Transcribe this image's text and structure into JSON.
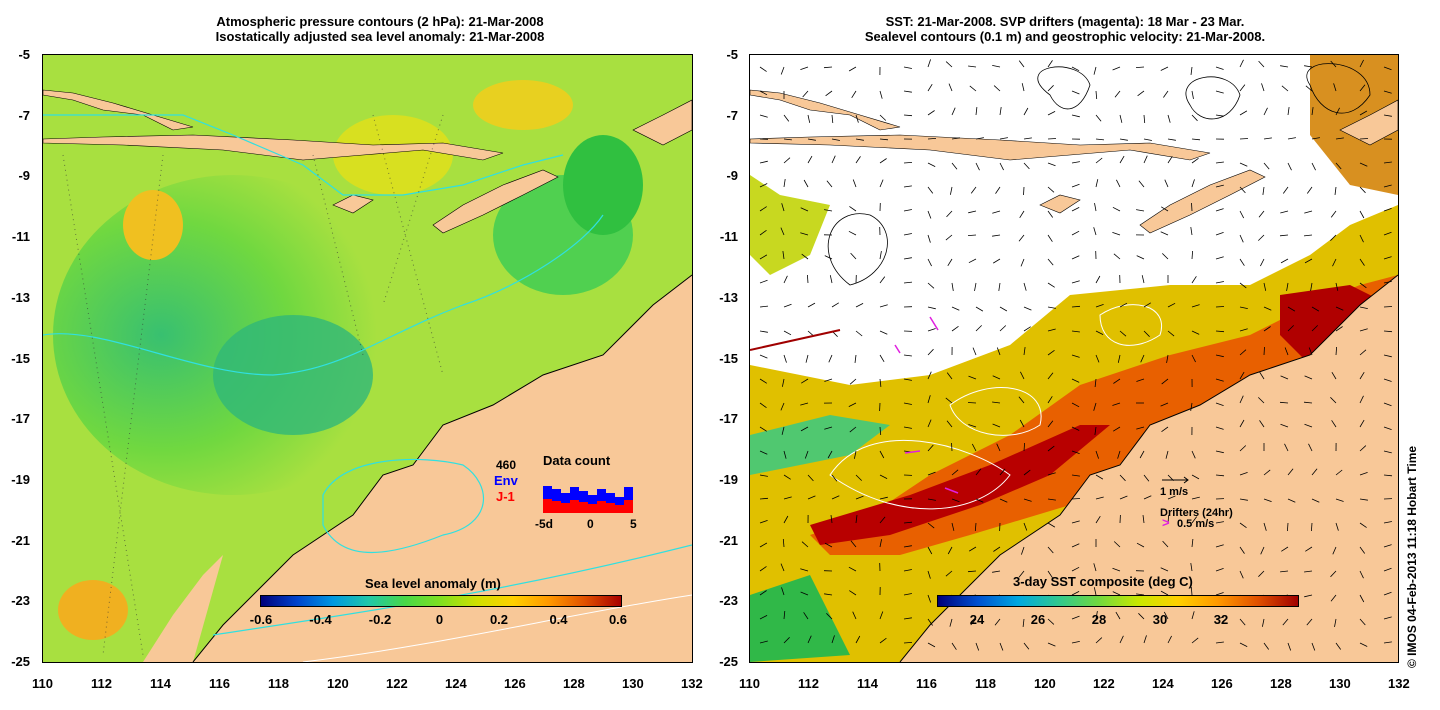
{
  "left_panel": {
    "title_line1": "Atmospheric pressure contours (2 hPa): 21-Mar-2008",
    "title_line2": "Isostatically adjusted sea level anomaly: 21-Mar-2008",
    "colorbar_title": "Sea level anomaly (m)",
    "colorbar_ticks": [
      "-0.6",
      "-0.4",
      "-0.2",
      "0",
      "0.2",
      "0.4",
      "0.6"
    ],
    "colorbar_colors": [
      "#00007a",
      "#0044cc",
      "#0098e0",
      "#20c8a8",
      "#48d848",
      "#80e020",
      "#d0e000",
      "#ffd000",
      "#ff9800",
      "#e05000",
      "#a80000"
    ],
    "inset": {
      "count": "460",
      "env_label": "Env",
      "j1_label": "J-1",
      "title": "Data count",
      "x_ticks": [
        "-5d",
        "0",
        "5"
      ],
      "env_color": "#0000ff",
      "j1_color": "#ff0000"
    }
  },
  "right_panel": {
    "title_line1": "SST: 21-Mar-2008. SVP drifters (magenta): 18 Mar - 23 Mar.",
    "title_line2": "Sealevel contours (0.1 m) and geostrophic velocity: 21-Mar-2008.",
    "colorbar_title": "3-day SST composite (deg C)",
    "colorbar_ticks": [
      "24",
      "26",
      "28",
      "30",
      "32"
    ],
    "colorbar_colors": [
      "#00007a",
      "#0050d0",
      "#00a8e0",
      "#30c890",
      "#70d840",
      "#c8e800",
      "#ffd000",
      "#ff9800",
      "#e05000",
      "#a00000"
    ],
    "legend_velocity": "1 m/s",
    "legend_drifters": "Drifters (24hr)",
    "legend_drifter_speed": "0.5 m/s",
    "drifter_color": "#e020e0"
  },
  "axes": {
    "x_ticks": [
      "110",
      "112",
      "114",
      "116",
      "118",
      "120",
      "122",
      "124",
      "126",
      "128",
      "130",
      "132"
    ],
    "y_ticks": [
      "-5",
      "-7",
      "-9",
      "-11",
      "-13",
      "-15",
      "-17",
      "-19",
      "-21",
      "-23",
      "-25"
    ]
  },
  "credit": "© IMOS 04-Feb-2013 11:18 Hobart Time",
  "colors": {
    "land": "#f8c898",
    "ocean_low_anomaly": "#40c860",
    "ocean_mid": "#a8e040",
    "contour": "#30e0e0"
  }
}
